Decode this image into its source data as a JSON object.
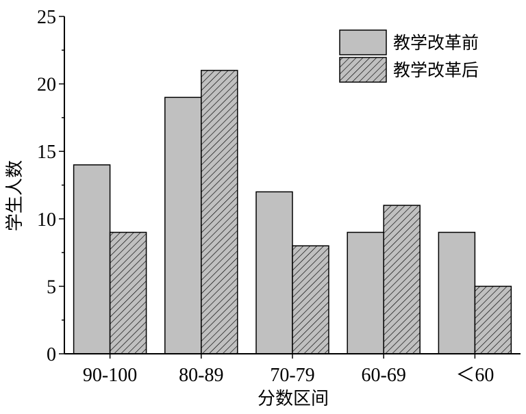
{
  "chart_data": {
    "type": "bar",
    "categories": [
      "90-100",
      "80-89",
      "70-79",
      "60-69",
      "＜60"
    ],
    "series": [
      {
        "name": "教学改革前",
        "values": [
          14,
          19,
          12,
          9,
          9
        ],
        "fill": "#c0c0c0",
        "pattern": "solid"
      },
      {
        "name": "教学改革后",
        "values": [
          9,
          21,
          8,
          11,
          5
        ],
        "fill": "#c0c0c0",
        "pattern": "hatch"
      }
    ],
    "xlabel": "分数区间",
    "ylabel": "学生人数",
    "ylim": [
      0,
      25
    ],
    "yticks": [
      0,
      5,
      10,
      15,
      20,
      25
    ],
    "grid": false,
    "legend": "top-right",
    "colors": {
      "bar": "#c0c0c0",
      "stroke": "#000000",
      "hatch": "#000000"
    }
  }
}
